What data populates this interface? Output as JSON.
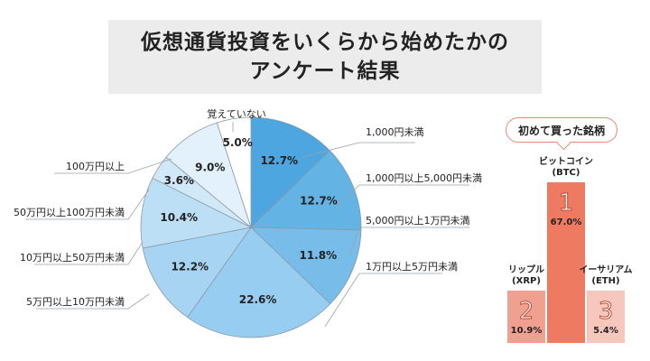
{
  "title": {
    "line1": "仮想通貨投資をいくらから始めたかの",
    "line2": "アンケート結果"
  },
  "chart_data": [
    {
      "type": "pie",
      "categories": [
        "1,000円未満",
        "1,000円以上5,000円未満",
        "5,000円以上1万円未満",
        "1万円以上5万円未満",
        "5万円以上10万円未満",
        "10万円以上50万円未満",
        "50万円以上100万円未満",
        "100万円以上",
        "覚えていない"
      ],
      "values": [
        12.7,
        12.7,
        11.8,
        22.6,
        12.2,
        10.4,
        3.6,
        9.0,
        5.0
      ],
      "labels": [
        "12.7%",
        "12.7%",
        "11.8%",
        "22.6%",
        "12.2%",
        "10.4%",
        "3.6%",
        "9.0%",
        "5.0%"
      ],
      "colors": [
        "#4da6df",
        "#63b3e5",
        "#78bde9",
        "#97cdf0",
        "#a6d4f2",
        "#bcdff6",
        "#d1e8f9",
        "#e2f1fb",
        "#ffffff"
      ]
    },
    {
      "type": "bar",
      "title": "初めて買った銘柄",
      "categories": [
        "リップル(XRP)",
        "ビットコイン(BTC)",
        "イーサリアム(ETH)"
      ],
      "name_lines": [
        [
          "リップル",
          "(XRP)"
        ],
        [
          "ビットコイン",
          "(BTC)"
        ],
        [
          "イーサリアム",
          "(ETH)"
        ]
      ],
      "values": [
        10.9,
        67.0,
        5.4
      ],
      "labels": [
        "10.9%",
        "67.0%",
        "5.4%"
      ],
      "ranks": [
        "2",
        "1",
        "3"
      ],
      "colors": [
        "#f0a090",
        "#ee7a62",
        "#f7c7bd"
      ],
      "ylim": [
        0,
        67.0
      ]
    }
  ]
}
